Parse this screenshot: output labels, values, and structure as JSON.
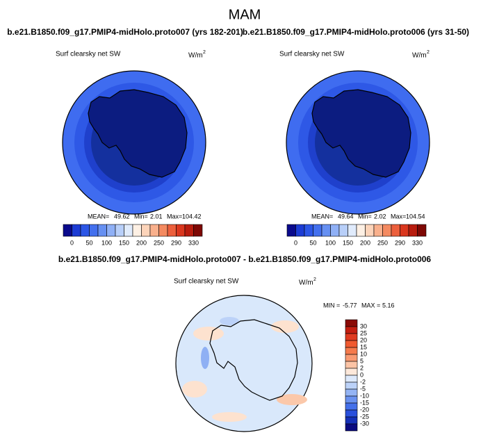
{
  "title": "MAM",
  "panels": [
    {
      "title": "b.e21.B1850.f09_g17.PMIP4-midHolo.proto007 (yrs 182-201)",
      "variable": "Surf clearsky net SW",
      "units": {
        "base": "W/m",
        "sup": "2"
      },
      "stats": {
        "mean_label": "MEAN=",
        "mean": 49.62,
        "min_label": "Min=",
        "min": 2.01,
        "max_label": "Max=",
        "max": 104.42
      }
    },
    {
      "title": "b.e21.B1850.f09_g17.PMIP4-midHolo.proto006 (yrs 31-50)",
      "variable": "Surf clearsky net SW",
      "units": {
        "base": "W/m",
        "sup": "2"
      },
      "stats": {
        "mean_label": "MEAN=",
        "mean": 49.64,
        "min_label": "Min=",
        "min": 2.02,
        "max_label": "Max=",
        "max": 104.54
      }
    }
  ],
  "colorbar": {
    "labels": [
      0,
      50,
      100,
      150,
      200,
      250,
      290,
      330
    ],
    "colors": [
      "#0a0a8c",
      "#1c3cd4",
      "#2c56e6",
      "#4370ee",
      "#6690f2",
      "#8fb0f6",
      "#b8cff9",
      "#e0ebfc",
      "#fdf0e4",
      "#fcd4ba",
      "#f9b08c",
      "#f48a60",
      "#ec5f3c",
      "#da371e",
      "#b81c0e",
      "#7e0804"
    ]
  },
  "difference": {
    "title": "b.e21.B1850.f09_g17.PMIP4-midHolo.proto007 - b.e21.B1850.f09_g17.PMIP4-midHolo.proto006",
    "variable": "Surf clearsky net SW",
    "units": {
      "base": "W/m",
      "sup": "2"
    },
    "stats": {
      "min_label": "MIN =",
      "min": -5.77,
      "max_label": "MAX =",
      "max": 5.16
    },
    "colorbar": {
      "labels": [
        30,
        25,
        20,
        15,
        10,
        5,
        2,
        0,
        -2,
        -5,
        -10,
        -15,
        -20,
        -25,
        -30
      ],
      "colors": [
        "#8a0a05",
        "#c41e10",
        "#e03a20",
        "#f05a30",
        "#f57a4c",
        "#f99a72",
        "#fcc4a6",
        "#fde8da",
        "#dde9fb",
        "#bcd2f8",
        "#94b4f4",
        "#6a92f0",
        "#4470ea",
        "#2a50dc",
        "#1530b8",
        "#0a0a80"
      ]
    }
  }
}
